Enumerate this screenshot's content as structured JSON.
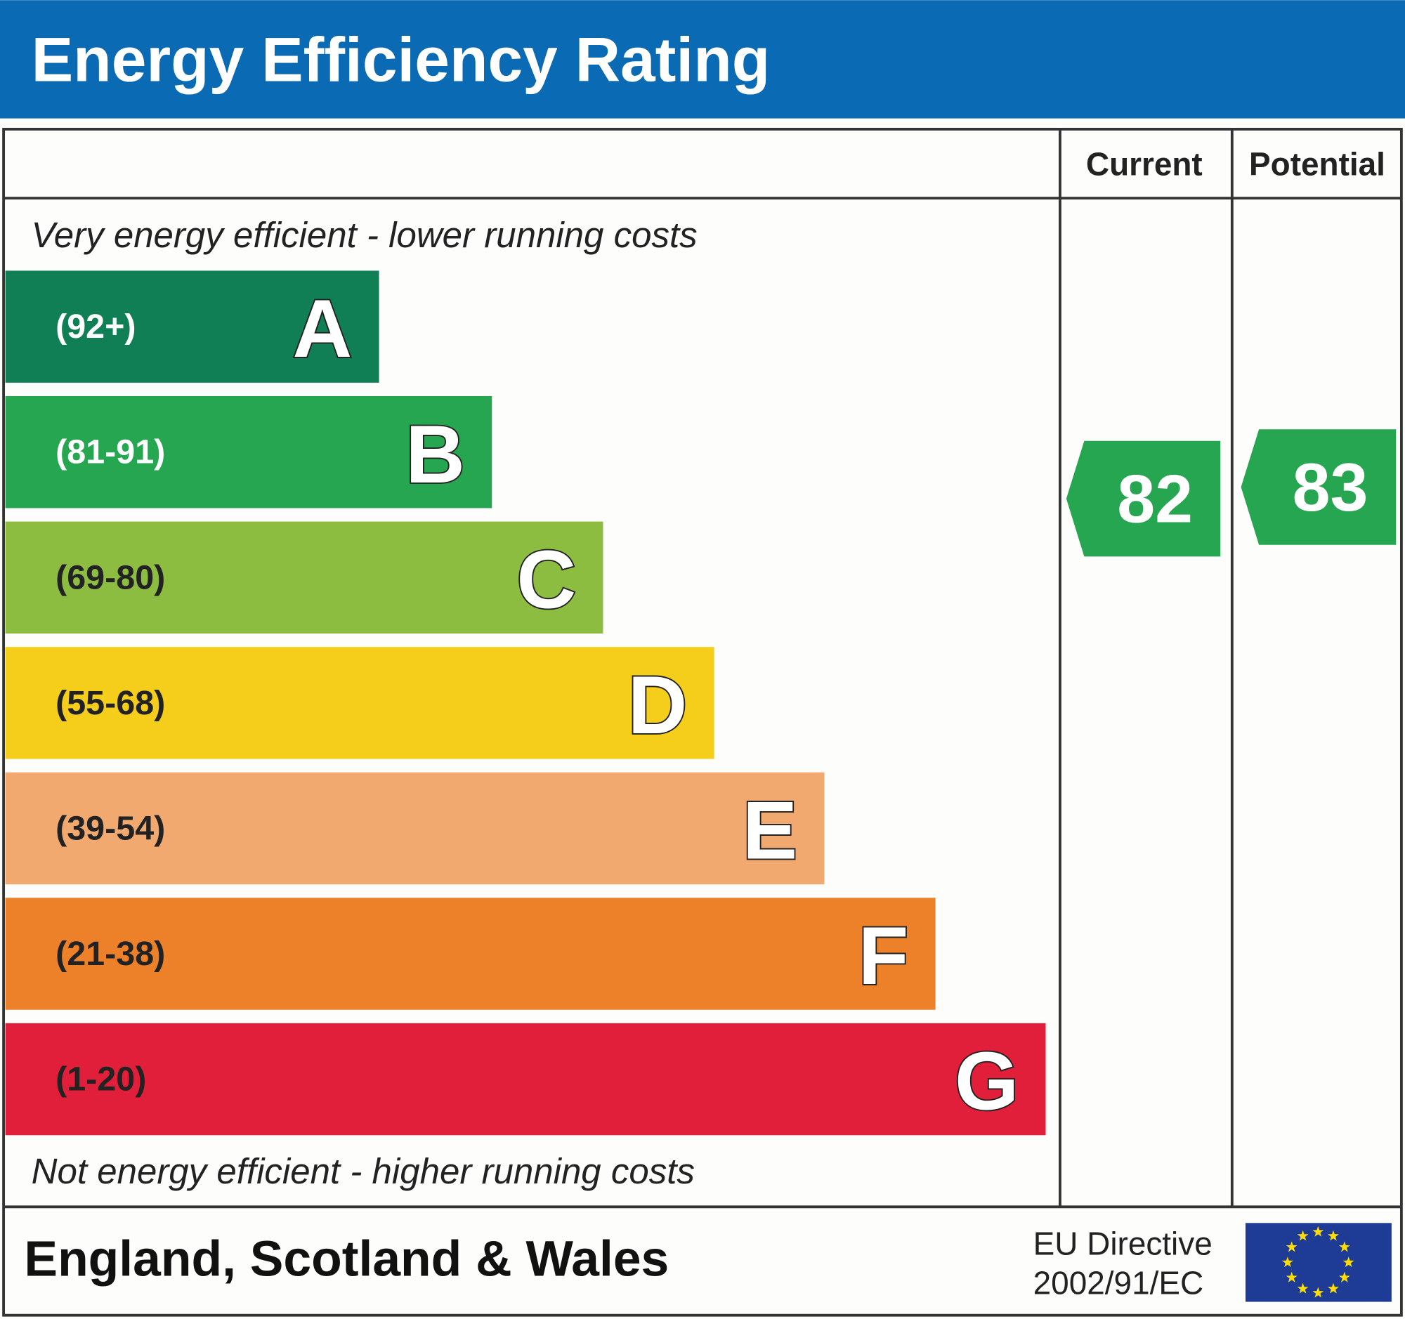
{
  "header": {
    "title": "Energy Efficiency Rating"
  },
  "columns": {
    "current": "Current",
    "potential": "Potential"
  },
  "top_note": "Very energy efficient - lower running costs",
  "bottom_note": "Not energy efficient - higher running costs",
  "bands": [
    {
      "range": "(92+)",
      "letter": "A",
      "color": "#107f55"
    },
    {
      "range": "(81-91)",
      "letter": "B",
      "color": "#26a650"
    },
    {
      "range": "(69-80)",
      "letter": "C",
      "color": "#8dbd40"
    },
    {
      "range": "(55-68)",
      "letter": "D",
      "color": "#f5cd1b"
    },
    {
      "range": "(39-54)",
      "letter": "E",
      "color": "#f2a96f"
    },
    {
      "range": "(21-38)",
      "letter": "F",
      "color": "#ec8129"
    },
    {
      "range": "(1-20)",
      "letter": "G",
      "color": "#e21f3a"
    }
  ],
  "ratings": {
    "current": 82,
    "potential": 83,
    "color": "#26a650"
  },
  "footer": {
    "region": "England, Scotland & Wales",
    "directive_line1": "EU Directive",
    "directive_line2": "2002/91/EC"
  }
}
